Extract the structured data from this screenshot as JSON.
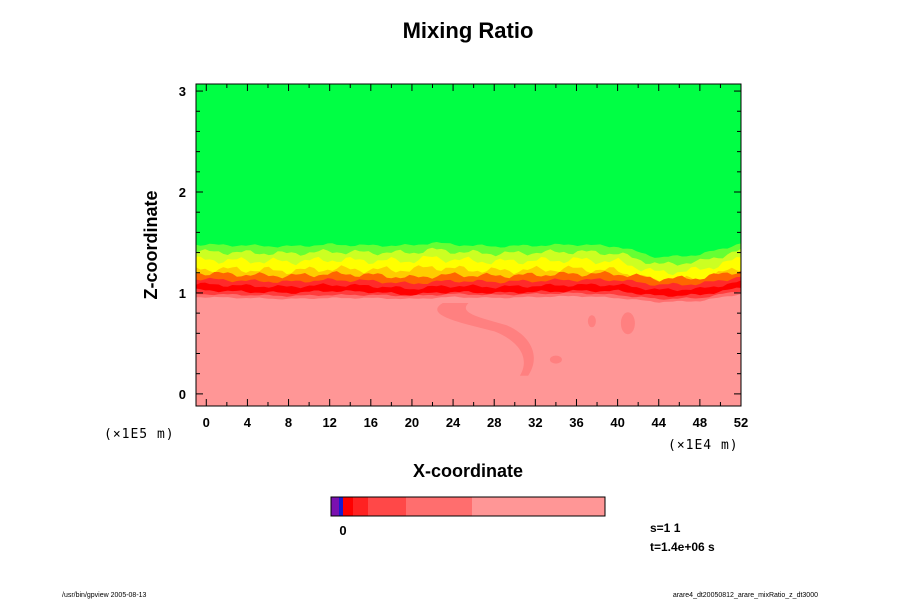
{
  "chart_data": {
    "type": "heatmap",
    "title": "Mixing Ratio",
    "xlabel": "X-coordinate",
    "ylabel": "Z-coordinate",
    "x_unit": "(×1E4 m)",
    "y_unit": "(×1E5 m)",
    "xlim": [
      -1,
      52
    ],
    "ylim": [
      -0.12,
      3.07
    ],
    "x_ticks": [
      0,
      4,
      8,
      12,
      16,
      20,
      24,
      28,
      32,
      36,
      40,
      44,
      48,
      52
    ],
    "y_ticks": [
      0,
      1,
      2,
      3
    ],
    "x_tick_labels": [
      "0",
      "4",
      "8",
      "12",
      "16",
      "20",
      "24",
      "28",
      "32",
      "36",
      "40",
      "44",
      "48",
      "52"
    ],
    "y_tick_labels": [
      "0",
      "1",
      "2",
      "3"
    ],
    "interface": {
      "x": [
        -1,
        4,
        8,
        12,
        16,
        20,
        22,
        24,
        28,
        32,
        36,
        40,
        44,
        48,
        52
      ],
      "green_lower_edge": [
        1.46,
        1.45,
        1.44,
        1.46,
        1.45,
        1.45,
        1.48,
        1.46,
        1.44,
        1.45,
        1.46,
        1.44,
        1.33,
        1.36,
        1.47
      ],
      "red_band_center": [
        1.08,
        1.06,
        1.05,
        1.07,
        1.06,
        1.03,
        1.05,
        1.06,
        1.05,
        1.06,
        1.07,
        1.07,
        1.02,
        1.03,
        1.1
      ],
      "light_red_top": [
        0.96,
        0.95,
        0.94,
        0.95,
        0.95,
        0.94,
        0.95,
        0.96,
        0.95,
        0.96,
        0.97,
        0.95,
        0.91,
        0.92,
        0.99
      ]
    },
    "colorbar": {
      "colors": [
        "#7a10b0",
        "#1a1acc",
        "#ff0000",
        "#ff2222",
        "#ff4848",
        "#ff6e6e",
        "#ff9696"
      ],
      "widths": [
        8,
        4,
        10,
        15,
        38,
        66,
        133
      ],
      "labels": [
        "0"
      ]
    },
    "fill_colors": {
      "top": "#00ff44",
      "bottom": "#ff9696",
      "plume": "#ff8080"
    },
    "info_lines": [
      "s=1 1",
      "t=1.4e+06 s"
    ]
  },
  "footer": {
    "left": "/usr/bin/gpview 2005-08-13",
    "right": "arare4_dt20050812_arare_mixRatio_z_dt3000"
  }
}
